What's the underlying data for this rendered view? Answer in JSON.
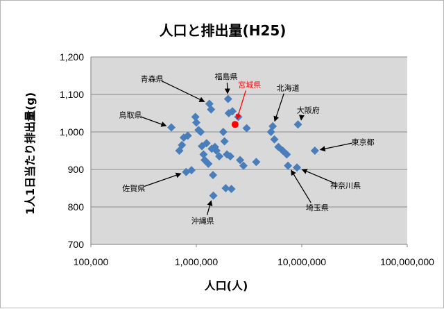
{
  "chart_data": {
    "type": "scatter",
    "title": "人口と排出量(H25)",
    "xlabel": "人口(人)",
    "ylabel": "1人1日当たり排出量(g)",
    "x_scale": "log",
    "xlim": [
      100000,
      100000000
    ],
    "ylim": [
      700,
      1200
    ],
    "x_ticks": [
      100000,
      1000000,
      10000000,
      100000000
    ],
    "x_tick_labels": [
      "100,000",
      "1,000,000",
      "10,000,000",
      "100,000,000"
    ],
    "y_ticks": [
      700,
      800,
      900,
      1000,
      1100,
      1200
    ],
    "y_tick_labels": [
      "700",
      "800",
      "900",
      "1,000",
      "1,100",
      "1,200"
    ],
    "grid": "horizontal",
    "plot_bg": "#d9d9d9",
    "point_color": "#4a7ebb",
    "highlight_color": "#ff0000",
    "points": [
      {
        "x": 580000,
        "y": 1012
      },
      {
        "x": 690000,
        "y": 950
      },
      {
        "x": 730000,
        "y": 965
      },
      {
        "x": 760000,
        "y": 985
      },
      {
        "x": 800000,
        "y": 893
      },
      {
        "x": 830000,
        "y": 990
      },
      {
        "x": 900000,
        "y": 898
      },
      {
        "x": 980000,
        "y": 1040
      },
      {
        "x": 1000000,
        "y": 1025
      },
      {
        "x": 1050000,
        "y": 1005
      },
      {
        "x": 1100000,
        "y": 1000
      },
      {
        "x": 1130000,
        "y": 962
      },
      {
        "x": 1170000,
        "y": 940
      },
      {
        "x": 1200000,
        "y": 925
      },
      {
        "x": 1250000,
        "y": 970
      },
      {
        "x": 1300000,
        "y": 915
      },
      {
        "x": 1330000,
        "y": 1075
      },
      {
        "x": 1380000,
        "y": 1060
      },
      {
        "x": 1400000,
        "y": 955
      },
      {
        "x": 1440000,
        "y": 885
      },
      {
        "x": 1450000,
        "y": 830
      },
      {
        "x": 1500000,
        "y": 960
      },
      {
        "x": 1550000,
        "y": 950
      },
      {
        "x": 1650000,
        "y": 935
      },
      {
        "x": 1800000,
        "y": 1000
      },
      {
        "x": 1850000,
        "y": 975
      },
      {
        "x": 1900000,
        "y": 850
      },
      {
        "x": 1950000,
        "y": 940
      },
      {
        "x": 2000000,
        "y": 1088
      },
      {
        "x": 2030000,
        "y": 1050
      },
      {
        "x": 2100000,
        "y": 935
      },
      {
        "x": 2150000,
        "y": 848
      },
      {
        "x": 2200000,
        "y": 1055
      },
      {
        "x": 2500000,
        "y": 1040
      },
      {
        "x": 2600000,
        "y": 925
      },
      {
        "x": 2800000,
        "y": 910
      },
      {
        "x": 3000000,
        "y": 1010
      },
      {
        "x": 3700000,
        "y": 920
      },
      {
        "x": 5100000,
        "y": 1000
      },
      {
        "x": 5300000,
        "y": 1015
      },
      {
        "x": 5500000,
        "y": 980
      },
      {
        "x": 6000000,
        "y": 960
      },
      {
        "x": 6600000,
        "y": 950
      },
      {
        "x": 7200000,
        "y": 940
      },
      {
        "x": 7400000,
        "y": 910
      },
      {
        "x": 9000000,
        "y": 905
      },
      {
        "x": 9200000,
        "y": 1020
      },
      {
        "x": 13300000,
        "y": 950
      }
    ],
    "highlight": {
      "x": 2330000,
      "y": 1020
    },
    "annotations": [
      {
        "label": "青森県",
        "label_x": 380000,
        "label_y": 1142,
        "tip_x": 1330000,
        "tip_y": 1075,
        "highlight": false
      },
      {
        "label": "福島県",
        "label_x": 1920000,
        "label_y": 1148,
        "tip_x": 2000000,
        "tip_y": 1088,
        "highlight": false
      },
      {
        "label": "宮城県",
        "label_x": 3200000,
        "label_y": 1126,
        "tip_x": 2330000,
        "tip_y": 1020,
        "highlight": true
      },
      {
        "label": "北海道",
        "label_x": 7400000,
        "label_y": 1118,
        "tip_x": 5300000,
        "tip_y": 1015,
        "highlight": false
      },
      {
        "label": "大阪府",
        "label_x": 11500000,
        "label_y": 1058,
        "tip_x": 9200000,
        "tip_y": 1020,
        "highlight": false
      },
      {
        "label": "鳥取県",
        "label_x": 237000,
        "label_y": 1045,
        "tip_x": 580000,
        "tip_y": 1012,
        "highlight": false
      },
      {
        "label": "東京都",
        "label_x": 38000000,
        "label_y": 973,
        "tip_x": 13300000,
        "tip_y": 950,
        "highlight": false
      },
      {
        "label": "佐賀県",
        "label_x": 255000,
        "label_y": 850,
        "tip_x": 800000,
        "tip_y": 893,
        "highlight": false
      },
      {
        "label": "神奈川県",
        "label_x": 26000000,
        "label_y": 857,
        "tip_x": 9000000,
        "tip_y": 905,
        "highlight": false
      },
      {
        "label": "埼玉県",
        "label_x": 14000000,
        "label_y": 798,
        "tip_x": 7400000,
        "tip_y": 910,
        "highlight": false
      },
      {
        "label": "沖縄県",
        "label_x": 1150000,
        "label_y": 763,
        "tip_x": 1450000,
        "tip_y": 830,
        "highlight": false
      }
    ]
  }
}
